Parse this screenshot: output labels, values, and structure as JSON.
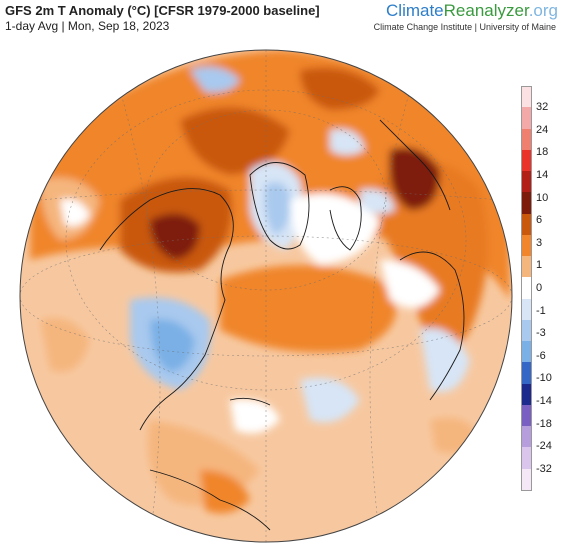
{
  "header": {
    "title": "GFS 2m T Anomaly (°C) [CFSR 1979-2000 baseline]",
    "subtitle": "1-day Avg | Mon, Sep 18, 2023"
  },
  "brand": {
    "part1": "Climate",
    "part2": "Reanalyzer",
    "part3": ".org",
    "tagline": "Climate Change Institute | University of Maine"
  },
  "legend": {
    "labels": [
      "32",
      "24",
      "18",
      "14",
      "10",
      "6",
      "3",
      "1",
      "0",
      "-1",
      "-3",
      "-6",
      "-10",
      "-14",
      "-18",
      "-24",
      "-32"
    ],
    "colors": [
      "#fbe1e1",
      "#f4a9a9",
      "#ef7f6f",
      "#e8322a",
      "#b21f16",
      "#7e1c0c",
      "#c9580c",
      "#f0852b",
      "#f5b67e",
      "#ffffff",
      "#d7e5f6",
      "#a9c9ee",
      "#7ab0e6",
      "#3567c6",
      "#1b2a8c",
      "#7a5fc3",
      "#b69ddc",
      "#dac6ec",
      "#f4e8f6"
    ]
  },
  "map": {
    "colors": {
      "ocean_base": "#f7c8a0",
      "warm_light": "#f5b67e",
      "warm_mid": "#f0852b",
      "warm_strong": "#c9580c",
      "warm_extreme": "#7e1c0c",
      "neutral": "#ffffff",
      "cool_light": "#d7e5f6",
      "cool_mid": "#a9c9ee"
    }
  }
}
